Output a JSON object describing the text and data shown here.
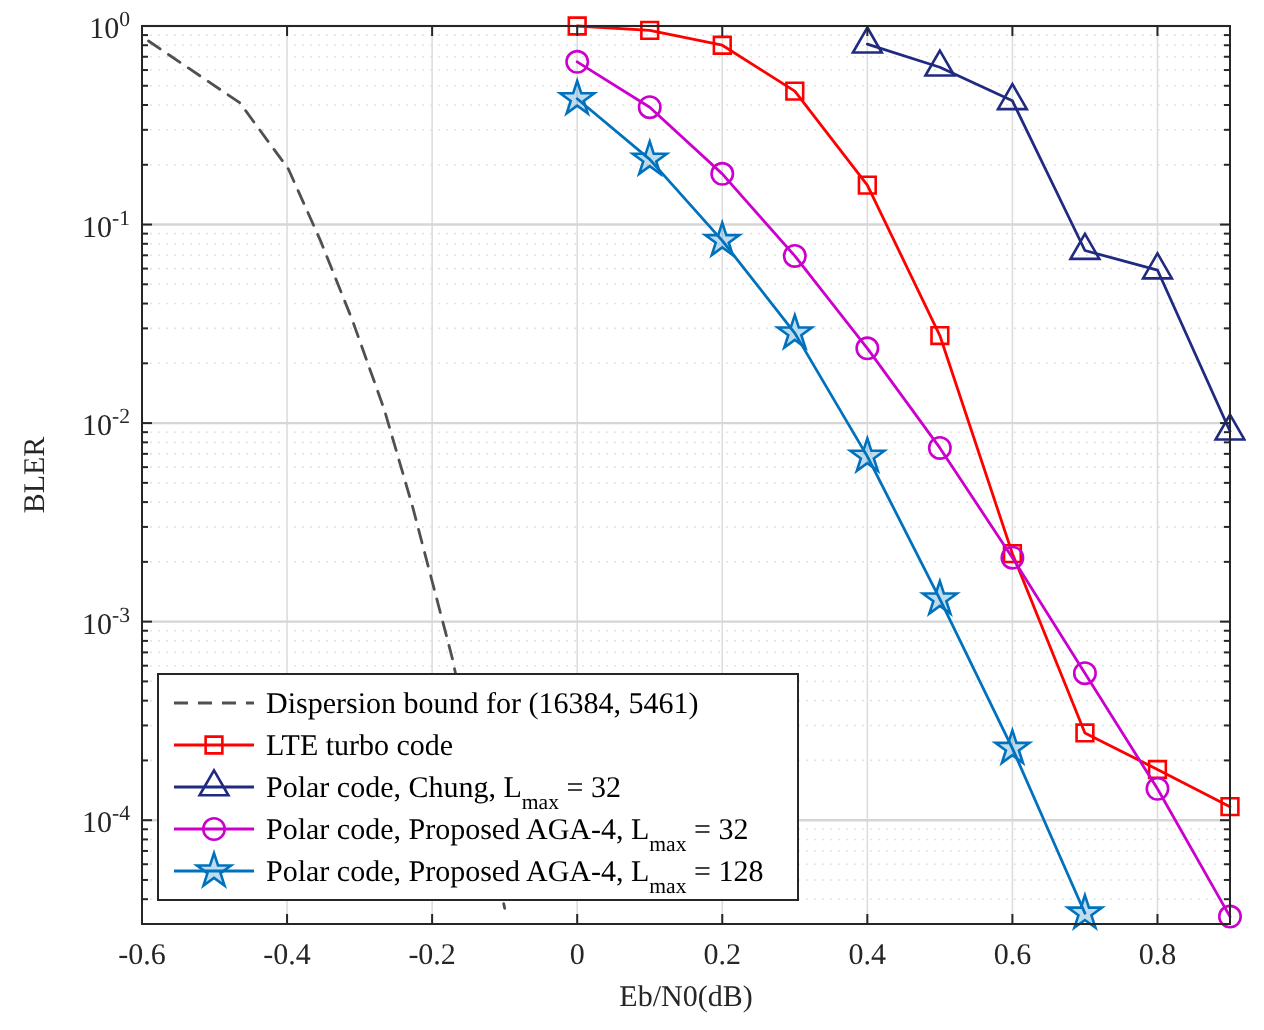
{
  "chart_data": {
    "type": "line",
    "xlabel": "Eb/N0(dB)",
    "ylabel": "BLER",
    "log": "y",
    "grid": true,
    "legend": "bottom left",
    "xlim": [
      -0.6,
      0.9
    ],
    "xticks": [
      -0.6,
      -0.4,
      -0.2,
      0,
      0.2,
      0.4,
      0.6,
      0.8
    ],
    "ylim": [
      3e-05,
      1
    ],
    "yticks": [
      {
        "value": 0.0001,
        "label": "10$^{-4}$"
      },
      {
        "value": 0.001,
        "label": "10$^{-3}$"
      },
      {
        "value": 0.01,
        "label": "10$^{-2}$"
      },
      {
        "value": 0.1,
        "label": "10$^{-1}$"
      },
      {
        "value": 1,
        "label": "10$^{0}$"
      },
      {
        "value": 3e-05,
        "label": null
      },
      {
        "value": 4e-05,
        "label": null
      },
      {
        "value": 5e-05,
        "label": null
      },
      {
        "value": 6e-05,
        "label": null
      },
      {
        "value": 7e-05,
        "label": null
      },
      {
        "value": 8e-05,
        "label": null
      },
      {
        "value": 9e-05,
        "label": null
      },
      {
        "value": 0.0002,
        "label": null
      },
      {
        "value": 0.0003,
        "label": null
      },
      {
        "value": 0.0004,
        "label": null
      },
      {
        "value": 0.0005,
        "label": null
      },
      {
        "value": 0.0006,
        "label": null
      },
      {
        "value": 0.0007,
        "label": null
      },
      {
        "value": 0.0008,
        "label": null
      },
      {
        "value": 0.0009,
        "label": null
      },
      {
        "value": 0.002,
        "label": null
      },
      {
        "value": 0.003,
        "label": null
      },
      {
        "value": 0.004,
        "label": null
      },
      {
        "value": 0.005,
        "label": null
      },
      {
        "value": 0.006,
        "label": null
      },
      {
        "value": 0.007,
        "label": null
      },
      {
        "value": 0.008,
        "label": null
      },
      {
        "value": 0.009,
        "label": null
      },
      {
        "value": 0.02,
        "label": null
      },
      {
        "value": 0.03,
        "label": null
      },
      {
        "value": 0.04,
        "label": null
      },
      {
        "value": 0.05,
        "label": null
      },
      {
        "value": 0.06,
        "label": null
      },
      {
        "value": 0.07,
        "label": null
      },
      {
        "value": 0.08,
        "label": null
      },
      {
        "value": 0.09,
        "label": null
      },
      {
        "value": 0.2,
        "label": null
      },
      {
        "value": 0.3,
        "label": null
      },
      {
        "value": 0.4,
        "label": null
      },
      {
        "value": 0.5,
        "label": null
      },
      {
        "value": 0.6,
        "label": null
      },
      {
        "value": 0.7,
        "label": null
      },
      {
        "value": 0.8,
        "label": null
      },
      {
        "value": 0.9,
        "label": null
      }
    ],
    "series": [
      {
        "name": "Dispersion bound for (16384, 5461)",
        "color": "#505050",
        "marker": "none",
        "line_style": "dashed",
        "x": [
          -0.591,
          -0.465,
          -0.398,
          -0.354,
          -0.31,
          -0.266,
          -0.227,
          -0.172,
          -0.1
        ],
        "values": [
          0.84,
          0.41,
          0.19,
          0.083,
          0.033,
          0.0117,
          0.0038,
          0.00065,
          3.6e-05
        ]
      },
      {
        "name": "LTE turbo code",
        "color": "#ff0000",
        "marker": "square",
        "x": [
          0,
          0.1,
          0.2,
          0.3,
          0.4,
          0.5,
          0.6,
          0.7,
          0.8,
          0.9
        ],
        "values": [
          1.0,
          0.95,
          0.8,
          0.47,
          0.158,
          0.0276,
          0.0022,
          0.000275,
          0.00018,
          0.000117
        ]
      },
      {
        "name": "Polar code, Chung, L$_{max}$ = 32",
        "color": "#202a80",
        "marker": "triangle",
        "x": [
          0.4,
          0.5,
          0.6,
          0.7,
          0.8,
          0.9
        ],
        "values": [
          0.81,
          0.62,
          0.42,
          0.074,
          0.059,
          0.0091
        ]
      },
      {
        "name": "Polar code, Proposed AGA-4, L$_{max}$ = 32",
        "color": "#cc00cc",
        "marker": "circle",
        "x": [
          0,
          0.1,
          0.2,
          0.3,
          0.4,
          0.5,
          0.6,
          0.7,
          0.8,
          0.9
        ],
        "values": [
          0.66,
          0.39,
          0.18,
          0.0695,
          0.0238,
          0.0075,
          0.0021,
          0.00055,
          0.000144,
          3.27e-05
        ]
      },
      {
        "name": "Polar code, Proposed AGA-4, L$_{max}$ = 128",
        "color": "#0072bd",
        "marker": "star",
        "x": [
          0,
          0.1,
          0.2,
          0.3,
          0.4,
          0.5,
          0.6,
          0.7
        ],
        "values": [
          0.43,
          0.213,
          0.083,
          0.0284,
          0.0068,
          0.0013,
          0.00023,
          3.4e-05
        ]
      }
    ]
  }
}
